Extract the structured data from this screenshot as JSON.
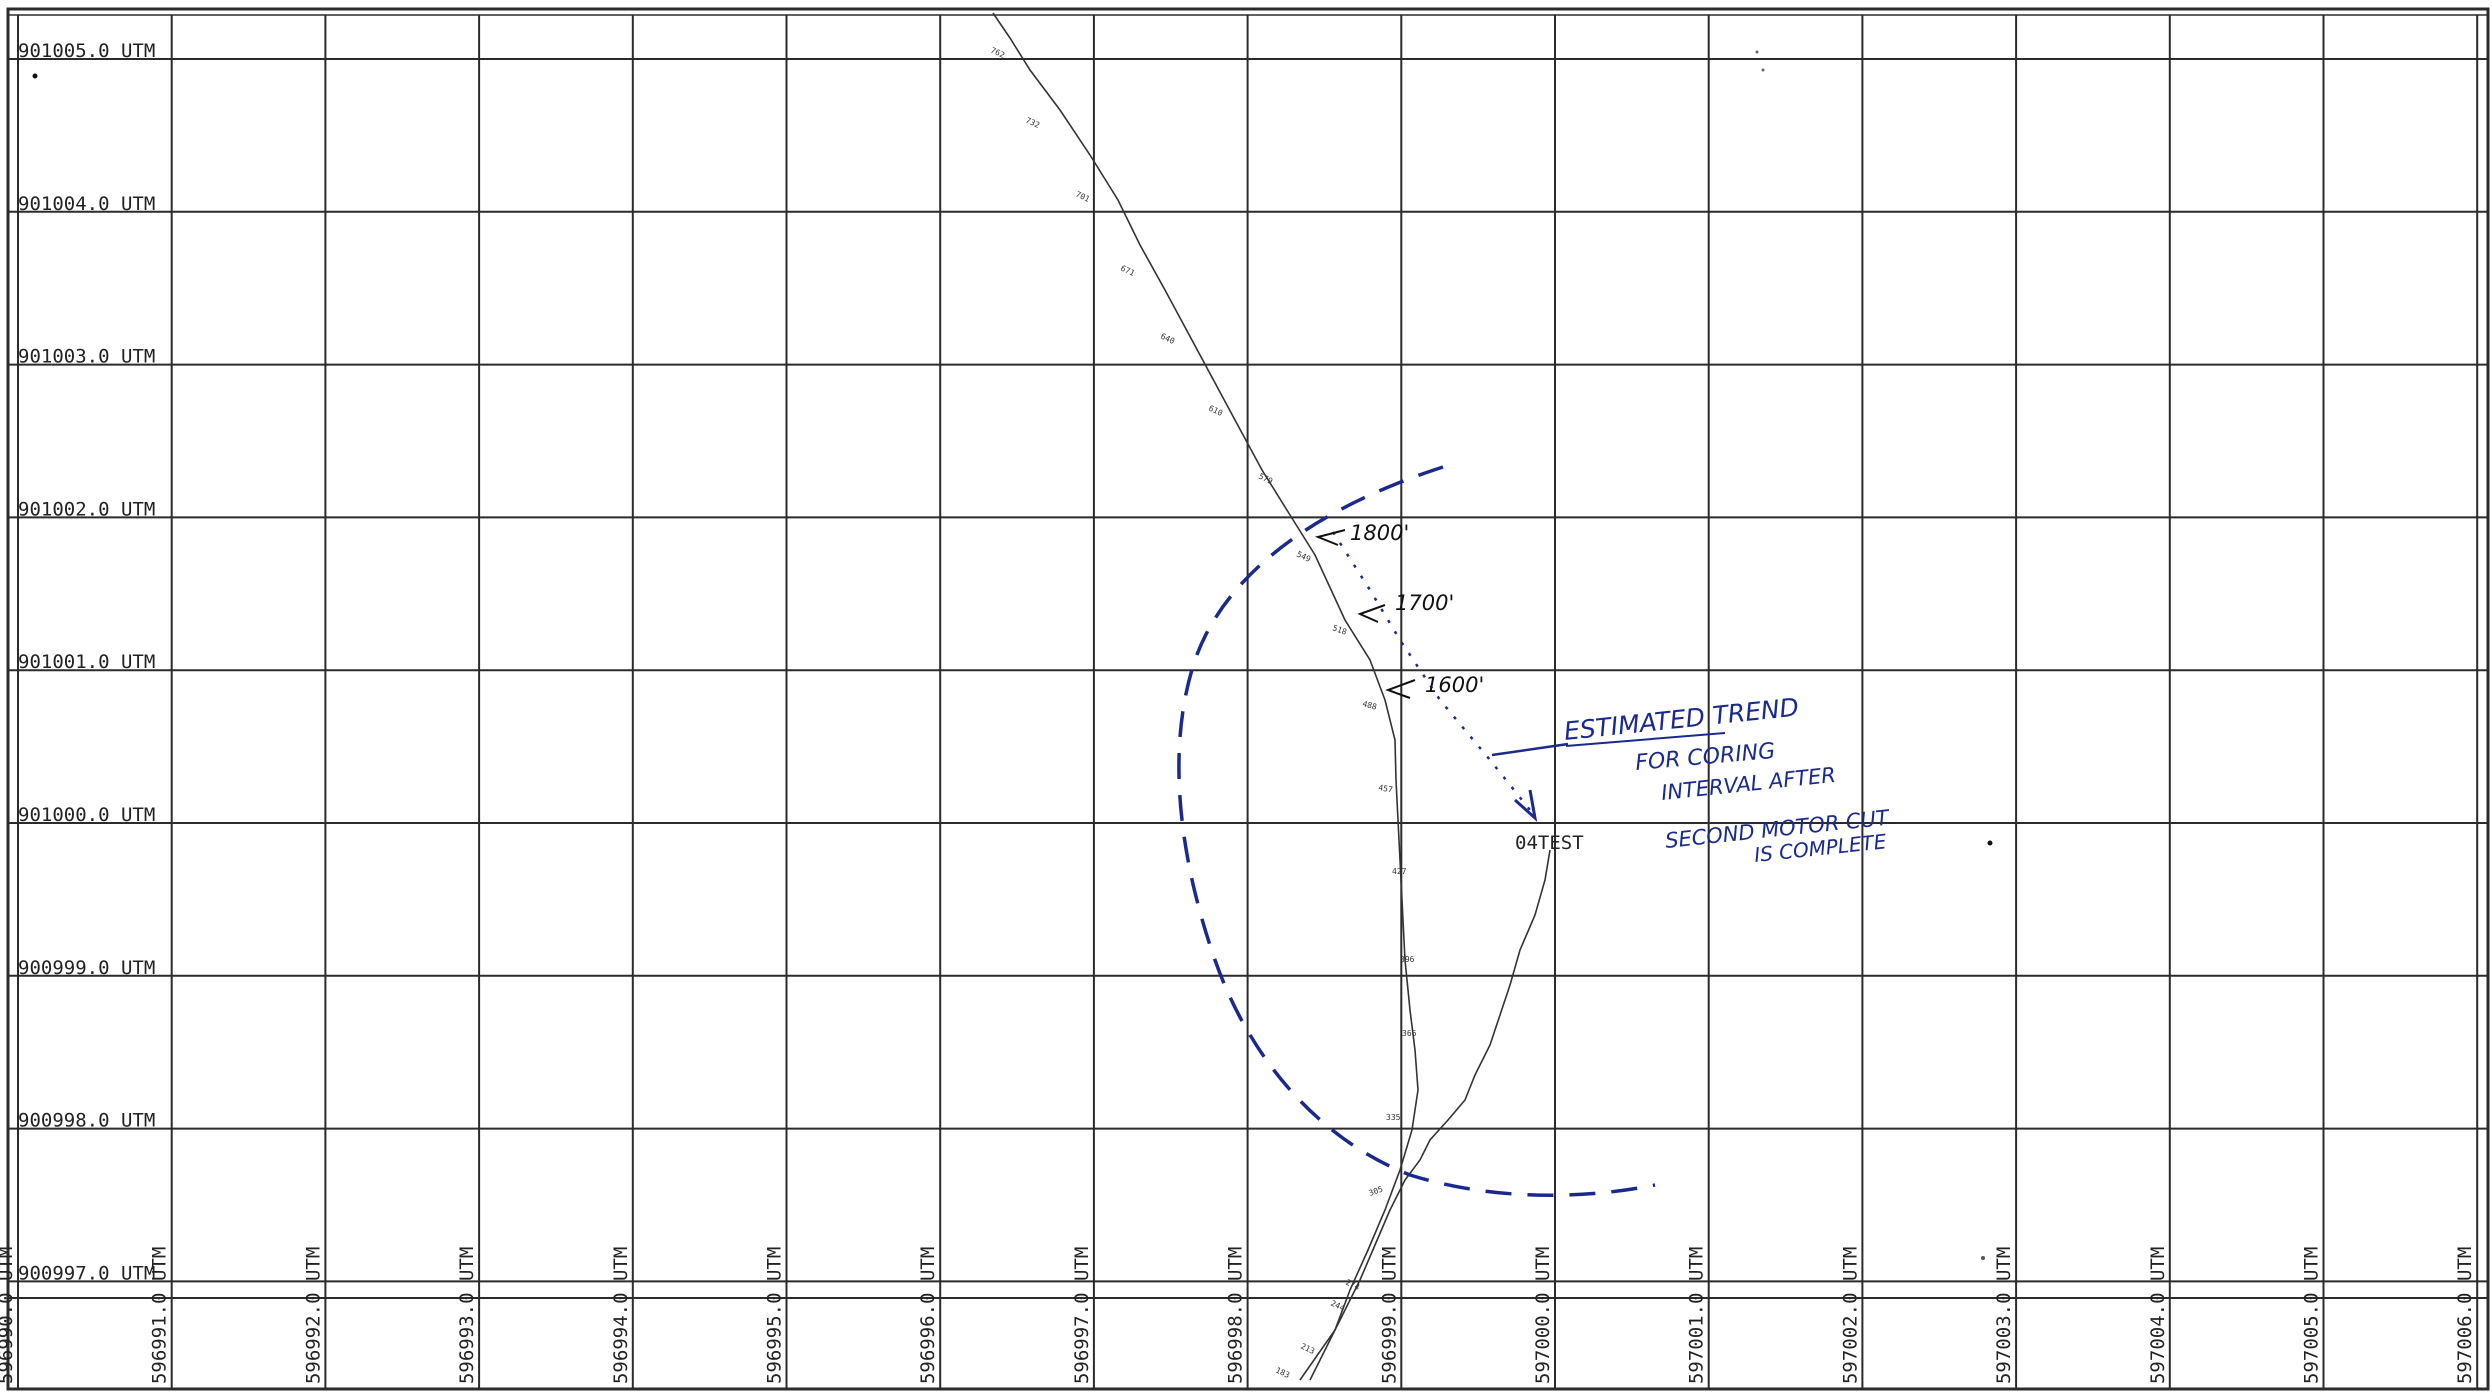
{
  "plot": {
    "units": "UTM",
    "y_labels": [
      "901005.0 UTM",
      "901004.0 UTM",
      "901003.0 UTM",
      "901002.0 UTM",
      "901001.0 UTM",
      "901000.0 UTM",
      "900999.0 UTM",
      "900998.0 UTM",
      "900997.0 UTM"
    ],
    "x_labels": [
      "596990.0 UTM",
      "596991.0 UTM",
      "596992.0 UTM",
      "596993.0 UTM",
      "596994.0 UTM",
      "596995.0 UTM",
      "596996.0 UTM",
      "596997.0 UTM",
      "596998.0 UTM",
      "596999.0 UTM",
      "597000.0 UTM",
      "597001.0 UTM",
      "597002.0 UTM",
      "597003.0 UTM",
      "597004.0 UTM",
      "597005.0 UTM",
      "597006.0 UTM"
    ],
    "well_name": "04TEST",
    "survey_depth_labels": [
      "762",
      "732",
      "701",
      "671",
      "640",
      "610",
      "579",
      "549",
      "518",
      "488",
      "457",
      "427",
      "396",
      "366",
      "335",
      "305",
      "274",
      "244",
      "213",
      "183"
    ],
    "hand_depth_marks": [
      "1800'",
      "1700'",
      "1600'"
    ],
    "annotation_lines": [
      "ESTIMATED TREND",
      "FOR CORING",
      "INTERVAL AFTER",
      "SECOND MOTOR CUT",
      "IS COMPLETE"
    ],
    "colors": {
      "grid": "#2b2b2b",
      "ink_blue": "#1a2a8c",
      "trajectory": "#333333"
    }
  }
}
